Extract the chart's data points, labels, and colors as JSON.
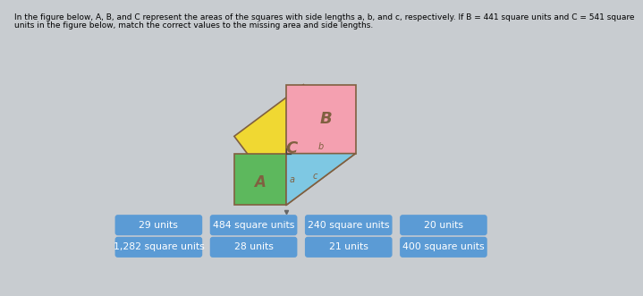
{
  "title_line1": "In the figure below, A, B, and C represent the areas of the squares with side lengths a, b, and c, respectively. If B = 441 square units and C = 541 square",
  "title_line2": "units in the figure below, match the correct values to the missing area and side lengths.",
  "bg_color": "#c8ccd0",
  "button_color": "#5b9bd5",
  "button_text_color": "#ffffff",
  "buttons_row1": [
    "29 units",
    "484 square units",
    "240 square units",
    "20 units"
  ],
  "buttons_row2": [
    "1,282 square units",
    "28 units",
    "21 units",
    "400 square units"
  ],
  "square_C_color": "#f0d832",
  "square_B_color": "#f4a0b0",
  "square_A_color": "#5db85d",
  "triangle_color": "#7ec8e3",
  "label_C": "C",
  "label_B": "B",
  "label_A": "A",
  "label_a": "a",
  "label_b": "b",
  "label_c": "c",
  "edge_color": "#806040",
  "label_color": "#806040"
}
